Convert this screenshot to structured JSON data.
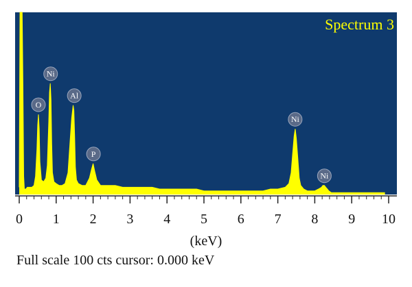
{
  "chart_data": {
    "type": "line",
    "title": "Spectrum 3",
    "xlabel": "(keV)",
    "ylabel": "",
    "xlim": [
      0,
      10
    ],
    "ylim": [
      0,
      100
    ],
    "xticks": [
      "0",
      "1",
      "2",
      "3",
      "4",
      "5",
      "6",
      "7",
      "8",
      "9",
      "10"
    ],
    "grid": false,
    "colors": {
      "plot_background": "#0f3a6d",
      "spectrum": "#ffff00",
      "title": "#ffff00",
      "peak_marker": "#5a6a88"
    },
    "peaks": [
      {
        "label": "O",
        "energy": 0.52,
        "counts": 44
      },
      {
        "label": "Ni",
        "energy": 0.85,
        "counts": 61
      },
      {
        "label": "Al",
        "energy": 1.49,
        "counts": 49
      },
      {
        "label": "P",
        "energy": 2.01,
        "counts": 17
      },
      {
        "label": "Ni",
        "energy": 7.47,
        "counts": 36
      },
      {
        "label": "Ni",
        "energy": 8.26,
        "counts": 5
      }
    ],
    "series": [
      {
        "x": [
          0.0,
          0.02,
          0.04,
          0.06,
          0.08,
          0.1,
          0.12,
          0.14,
          0.18,
          0.22,
          0.28,
          0.34,
          0.4,
          0.44,
          0.48,
          0.5,
          0.52,
          0.54,
          0.56,
          0.6,
          0.66,
          0.72,
          0.76,
          0.8,
          0.82,
          0.84,
          0.86,
          0.88,
          0.9,
          0.94,
          1.0,
          1.08,
          1.16,
          1.24,
          1.32,
          1.38,
          1.42,
          1.46,
          1.48,
          1.5,
          1.52,
          1.55,
          1.6,
          1.7,
          1.8,
          1.9,
          1.96,
          2.0,
          2.04,
          2.1,
          2.2,
          2.4,
          2.6,
          2.8,
          3.0,
          3.2,
          3.4,
          3.6,
          3.8,
          4.0,
          4.2,
          4.4,
          4.6,
          4.8,
          5.0,
          5.2,
          5.4,
          5.6,
          5.8,
          6.0,
          6.2,
          6.4,
          6.6,
          6.8,
          7.0,
          7.2,
          7.3,
          7.36,
          7.4,
          7.44,
          7.47,
          7.5,
          7.54,
          7.58,
          7.62,
          7.7,
          7.8,
          7.9,
          8.0,
          8.1,
          8.18,
          8.22,
          8.26,
          8.3,
          8.34,
          8.38,
          8.45,
          8.55,
          8.7,
          8.9,
          9.1,
          9.3,
          9.5,
          9.7,
          9.9
        ],
        "y": [
          4,
          100,
          100,
          100,
          100,
          60,
          10,
          3,
          3,
          4,
          4,
          4,
          5,
          10,
          25,
          38,
          44,
          36,
          18,
          8,
          7,
          9,
          16,
          40,
          56,
          61,
          52,
          28,
          12,
          7,
          6,
          5,
          5,
          6,
          12,
          30,
          42,
          49,
          46,
          32,
          15,
          8,
          6,
          5,
          5,
          9,
          14,
          17,
          13,
          8,
          5,
          5,
          5,
          4,
          4,
          4,
          4,
          4,
          3,
          3,
          3,
          3,
          3,
          3,
          2,
          2,
          2,
          2,
          2,
          2,
          2,
          2,
          2,
          3,
          3,
          4,
          6,
          12,
          22,
          32,
          36,
          31,
          20,
          9,
          5,
          3,
          2,
          2,
          2,
          3,
          4,
          5,
          5,
          4,
          3,
          2,
          1,
          1,
          1,
          1,
          1,
          1,
          1,
          1,
          1
        ]
      }
    ]
  }
}
